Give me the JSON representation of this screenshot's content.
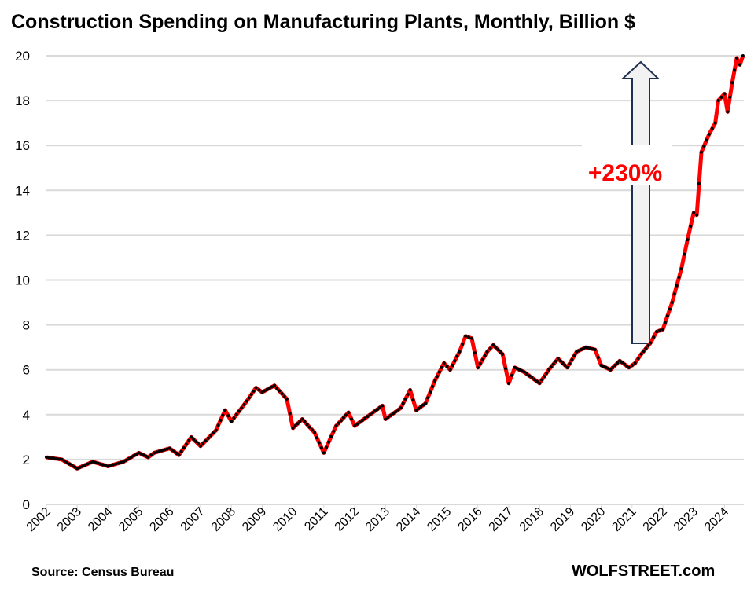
{
  "chart_data": {
    "type": "line",
    "title": "Construction Spending on Manufacturing Plants, Monthly, Billion $",
    "xlabel": "",
    "ylabel": "",
    "ylim": [
      0,
      20
    ],
    "yticks": [
      "0",
      "2",
      "4",
      "6",
      "8",
      "10",
      "12",
      "14",
      "16",
      "18",
      "20"
    ],
    "xticks": [
      "2002",
      "2003",
      "2004",
      "2005",
      "2006",
      "2007",
      "2008",
      "2009",
      "2010",
      "2011",
      "2012",
      "2013",
      "2014",
      "2015",
      "2016",
      "2017",
      "2018",
      "2019",
      "2020",
      "2021",
      "2022",
      "2023",
      "2024"
    ],
    "grid": true,
    "line_color": "#ff0000",
    "marker_color": "#000000",
    "x": [
      2002.0,
      2002.5,
      2003.0,
      2003.5,
      2004.0,
      2004.5,
      2005.0,
      2005.3,
      2005.5,
      2006.0,
      2006.3,
      2006.7,
      2007.0,
      2007.5,
      2007.8,
      2008.0,
      2008.5,
      2008.8,
      2009.0,
      2009.4,
      2009.8,
      2010.0,
      2010.3,
      2010.7,
      2011.0,
      2011.4,
      2011.8,
      2012.0,
      2012.5,
      2012.9,
      2013.0,
      2013.5,
      2013.8,
      2014.0,
      2014.3,
      2014.6,
      2014.9,
      2015.1,
      2015.4,
      2015.6,
      2015.8,
      2016.0,
      2016.3,
      2016.5,
      2016.8,
      2017.0,
      2017.2,
      2017.5,
      2018.0,
      2018.3,
      2018.6,
      2018.9,
      2019.2,
      2019.5,
      2019.8,
      2020.0,
      2020.3,
      2020.6,
      2020.9,
      2021.1,
      2021.3,
      2021.6,
      2021.8,
      2022.0,
      2022.3,
      2022.6,
      2022.8,
      2023.0,
      2023.1,
      2023.25,
      2023.5,
      2023.7,
      2023.8,
      2024.0,
      2024.1,
      2024.25,
      2024.4,
      2024.5,
      2024.6
    ],
    "values": [
      2.1,
      2.0,
      1.6,
      1.9,
      1.7,
      1.9,
      2.3,
      2.1,
      2.3,
      2.5,
      2.2,
      3.0,
      2.6,
      3.3,
      4.2,
      3.7,
      4.6,
      5.2,
      5.0,
      5.3,
      4.7,
      3.4,
      3.8,
      3.2,
      2.3,
      3.5,
      4.1,
      3.5,
      4.0,
      4.4,
      3.8,
      4.3,
      5.1,
      4.2,
      4.5,
      5.5,
      6.3,
      6.0,
      6.8,
      7.5,
      7.4,
      6.1,
      6.8,
      7.1,
      6.7,
      5.4,
      6.1,
      5.9,
      5.4,
      6.0,
      6.5,
      6.1,
      6.8,
      7.0,
      6.9,
      6.2,
      6.0,
      6.4,
      6.1,
      6.3,
      6.7,
      7.2,
      7.7,
      7.8,
      9.0,
      10.5,
      11.8,
      13.0,
      12.9,
      15.7,
      16.5,
      17.0,
      18.0,
      18.3,
      17.5,
      18.8,
      19.9,
      19.6,
      20.0
    ],
    "annotations": [
      {
        "text": "+230%",
        "color": "#ff0000"
      }
    ]
  },
  "footer": {
    "source": "Source: Census Bureau",
    "brand": "WOLFSTREET.com"
  }
}
